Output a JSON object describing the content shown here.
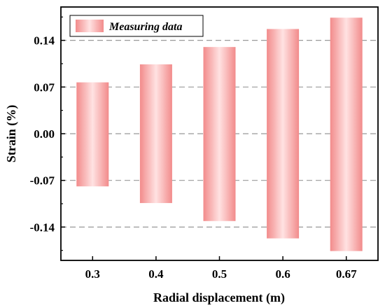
{
  "chart_data": {
    "type": "bar",
    "subtype": "floating-range",
    "categories": [
      "0.3",
      "0.4",
      "0.5",
      "0.6",
      "0.67"
    ],
    "ranges": [
      {
        "low": -0.079,
        "high": 0.077
      },
      {
        "low": -0.104,
        "high": 0.104
      },
      {
        "low": -0.131,
        "high": 0.13
      },
      {
        "low": -0.157,
        "high": 0.157
      },
      {
        "low": -0.176,
        "high": 0.174
      }
    ],
    "series": [
      {
        "name": "Measuring data"
      }
    ],
    "xlabel": "Radial displacement (m)",
    "ylabel": "Strain (%)",
    "yticks": [
      "0.14",
      "0.07",
      "0.00",
      "-0.07",
      "-0.14"
    ],
    "ylim": [
      -0.19,
      0.19
    ],
    "grid": "horizontal dashed",
    "legend_position": "top-left",
    "colors": {
      "bar_edge": "#f28b8b",
      "bar_center": "#ffe2e2",
      "grid": "#999999",
      "axis": "#000000"
    }
  }
}
